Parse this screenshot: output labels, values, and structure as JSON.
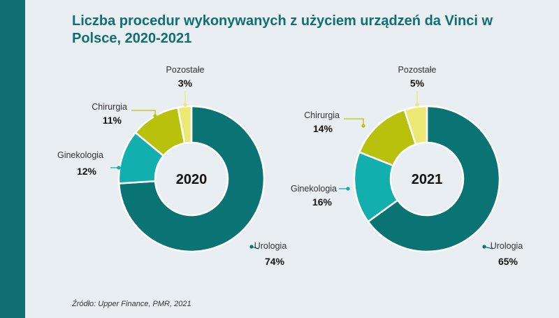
{
  "title": "Liczba procedur wykonywanych z użyciem urządzeń da Vinci w Polsce, 2020-2021",
  "source": "Źródło: Upper Finance, PMR, 2021",
  "colors": {
    "Urologia": "#0a7373",
    "Ginekologia": "#13aeae",
    "Chirurgia": "#b8c20c",
    "Pozostałe": "#ebe873",
    "sidebar": "#0f6f72",
    "background": "#e9eef2"
  },
  "chart_data": [
    {
      "type": "pie",
      "center_label": "2020",
      "categories": [
        "Urologia",
        "Ginekologia",
        "Chirurgia",
        "Pozostałe"
      ],
      "values": [
        74,
        12,
        11,
        3
      ],
      "labels": [
        "74%",
        "12%",
        "11%",
        "3%"
      ]
    },
    {
      "type": "pie",
      "center_label": "2021",
      "categories": [
        "Urologia",
        "Ginekologia",
        "Chirurgia",
        "Pozostałe"
      ],
      "values": [
        65,
        16,
        14,
        5
      ],
      "labels": [
        "65%",
        "16%",
        "14%",
        "5%"
      ]
    }
  ]
}
